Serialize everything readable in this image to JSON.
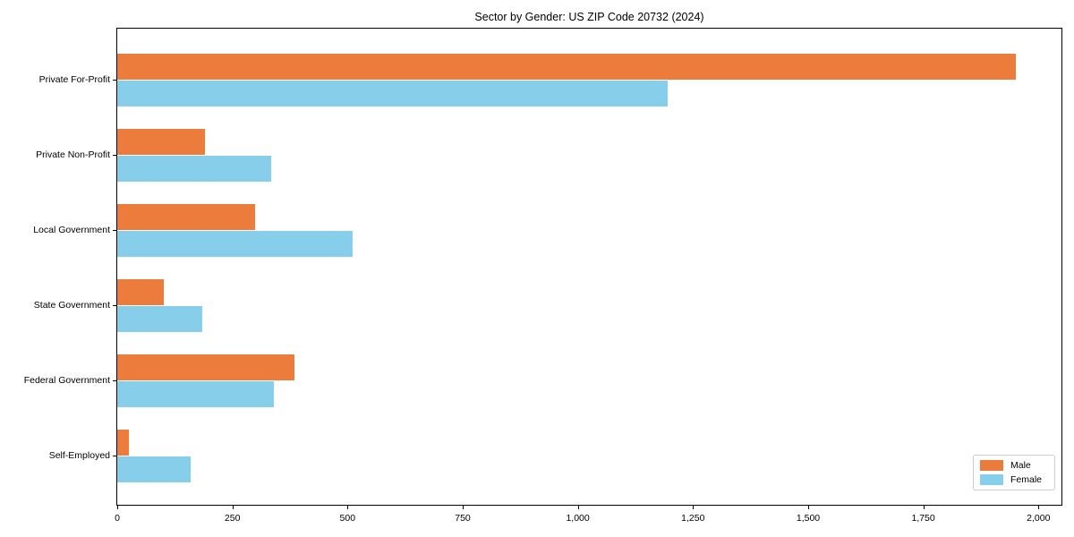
{
  "title": "Sector by Gender: US ZIP Code 20732 (2024)",
  "colors": {
    "male": "#EC7C3C",
    "female": "#87CEEB",
    "axis": "#000000",
    "legend_border": "#cccccc",
    "background": "#ffffff"
  },
  "chart_data": {
    "type": "bar",
    "orientation": "horizontal",
    "title": "Sector by Gender: US ZIP Code 20732 (2024)",
    "xlabel": "",
    "ylabel": "",
    "categories": [
      "Private For-Profit",
      "Private Non-Profit",
      "Local Government",
      "State Government",
      "Federal Government",
      "Self-Employed"
    ],
    "series": [
      {
        "name": "Male",
        "color": "#EC7C3C",
        "values": [
          1950,
          190,
          300,
          100,
          385,
          25
        ]
      },
      {
        "name": "Female",
        "color": "#87CEEB",
        "values": [
          1195,
          335,
          510,
          185,
          340,
          160
        ]
      }
    ],
    "xlim": [
      0,
      2050
    ],
    "x_ticks": [
      0,
      250,
      500,
      750,
      1000,
      1250,
      1500,
      1750,
      2000
    ],
    "x_tick_labels": [
      "0",
      "250",
      "500",
      "750",
      "1,000",
      "1,250",
      "1,500",
      "1,750",
      "2,000"
    ],
    "grid": false,
    "legend_position": "lower right"
  }
}
